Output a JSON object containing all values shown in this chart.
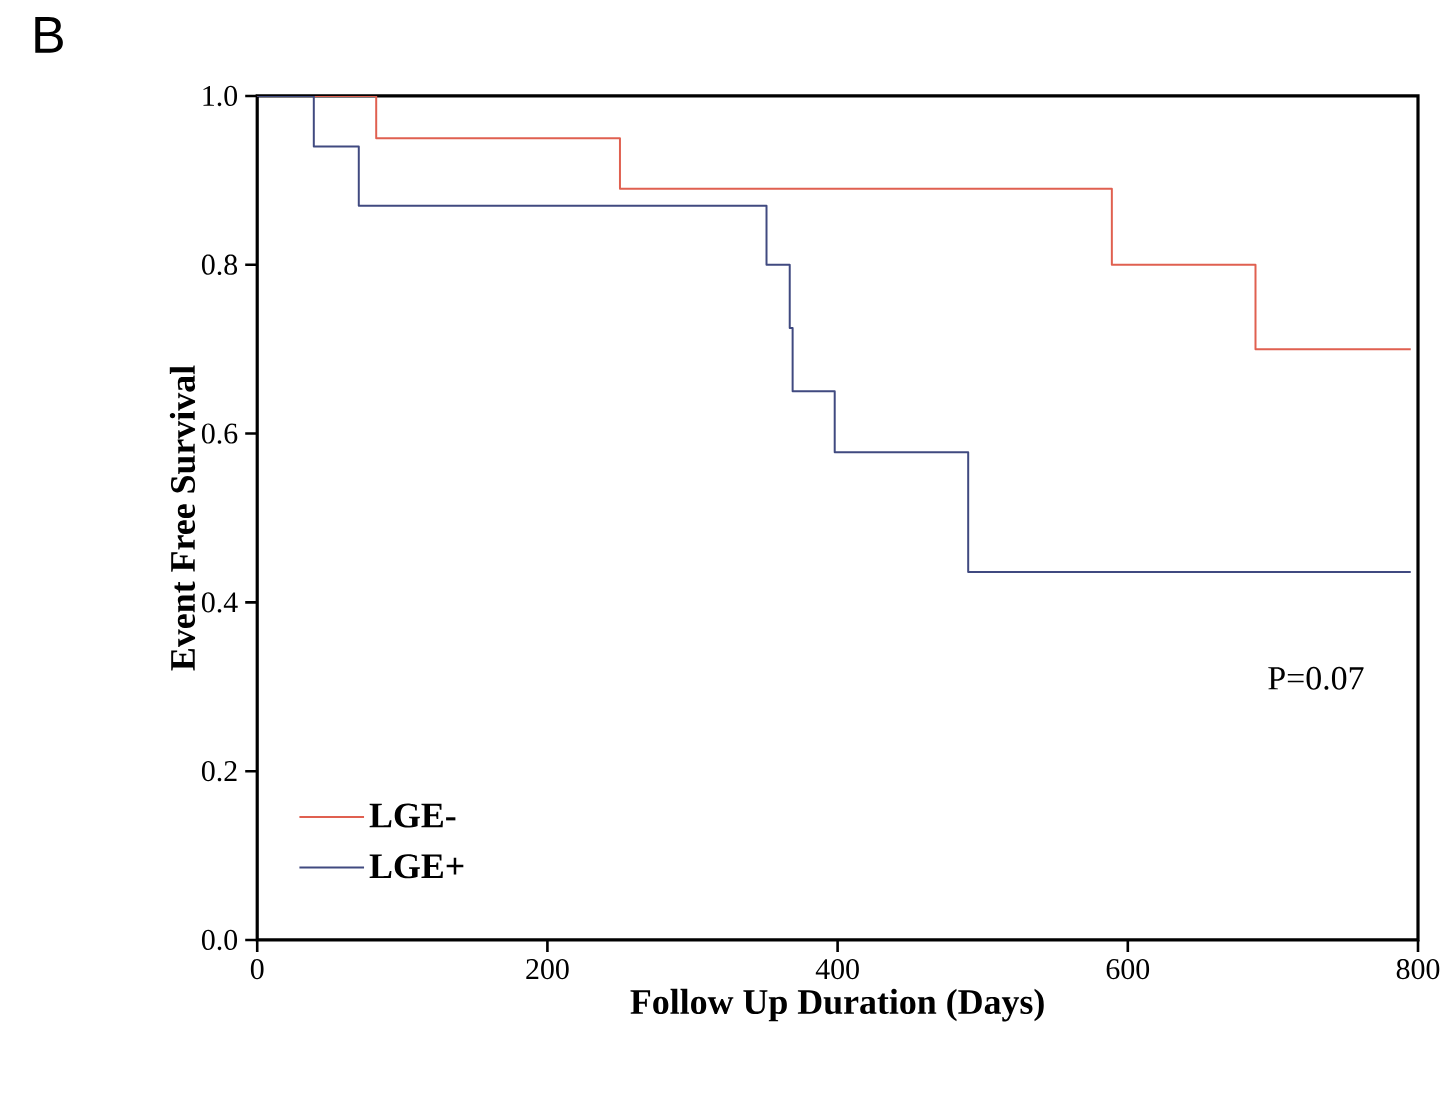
{
  "chart_data": {
    "type": "step",
    "xlabel": "Follow Up Duration (Days)",
    "ylabel": "Event Free Survival",
    "annotations": [
      "B",
      "P=0.07"
    ],
    "xlim": [
      0,
      800
    ],
    "ylim": [
      0,
      1
    ],
    "xticks": [
      0,
      200,
      400,
      600,
      800
    ],
    "yticks": [
      {
        "value": 0,
        "label": "0.0"
      },
      {
        "value": 0.2,
        "label": "0.2"
      },
      {
        "value": 0.4,
        "label": "0.4"
      },
      {
        "value": 0.6,
        "label": "0.6"
      },
      {
        "value": 0.8,
        "label": "0.8"
      },
      {
        "value": 1,
        "label": "1.0"
      }
    ],
    "legend": "bottom left",
    "series": [
      {
        "name": "LGE-",
        "color": "#e06050",
        "x": [
          0,
          82,
          250,
          589,
          688,
          795
        ],
        "values": [
          1,
          0.95,
          0.89,
          0.8,
          0.7,
          0.7
        ]
      },
      {
        "name": "LGE+",
        "color": "#404a80",
        "x": [
          0,
          39,
          70,
          351,
          367,
          369,
          398,
          490,
          795
        ],
        "values": [
          1,
          0.94,
          0.87,
          0.8,
          0.725,
          0.65,
          0.578,
          0.436,
          0.436
        ]
      }
    ]
  }
}
